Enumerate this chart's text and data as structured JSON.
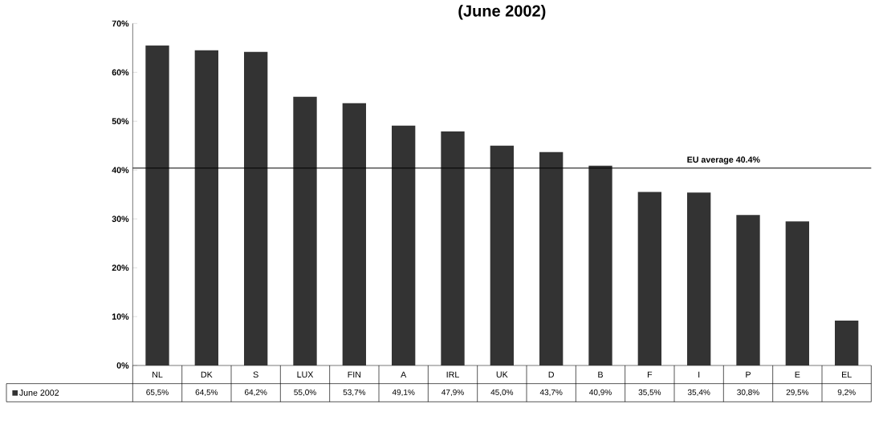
{
  "chart_data": {
    "type": "bar",
    "title": "(June 2002)",
    "categories": [
      "NL",
      "DK",
      "S",
      "LUX",
      "FIN",
      "A",
      "IRL",
      "UK",
      "D",
      "B",
      "F",
      "I",
      "P",
      "E",
      "EL"
    ],
    "series": [
      {
        "name": "June 2002",
        "color": "#333333",
        "values": [
          65.5,
          64.5,
          64.2,
          55.0,
          53.7,
          49.1,
          47.9,
          45.0,
          43.7,
          40.9,
          35.5,
          35.4,
          30.8,
          29.5,
          9.2
        ],
        "value_labels": [
          "65,5%",
          "64,5%",
          "64,2%",
          "55,0%",
          "53,7%",
          "49,1%",
          "47,9%",
          "45,0%",
          "43,7%",
          "40,9%",
          "35,5%",
          "35,4%",
          "30,8%",
          "29,5%",
          "9,2%"
        ]
      }
    ],
    "ylim": [
      0,
      70
    ],
    "yticks": [
      {
        "value": 0,
        "label": "0%"
      },
      {
        "value": 10,
        "label": "10%"
      },
      {
        "value": 20,
        "label": "20%"
      },
      {
        "value": 30,
        "label": "30%"
      },
      {
        "value": 40,
        "label": "40%"
      },
      {
        "value": 50,
        "label": "50%"
      },
      {
        "value": 60,
        "label": "60%"
      },
      {
        "value": 70,
        "label": "70%"
      }
    ],
    "ref_lines": [
      {
        "axis": "y",
        "value": 40.4,
        "label": "EU average 40.4%",
        "color": "#000000"
      }
    ],
    "grid": false,
    "legend": "bottom left"
  }
}
